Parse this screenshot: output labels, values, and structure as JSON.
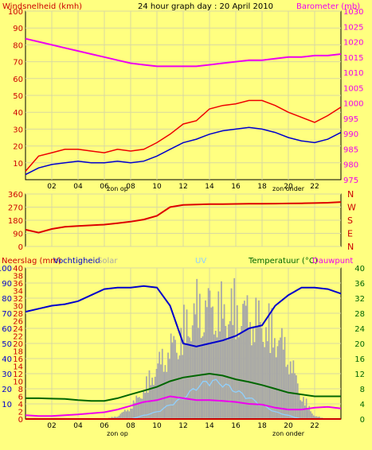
{
  "title": "24 hour graph day : 20 April 2010",
  "colors": {
    "background": "#ffff80",
    "plot_bg": "#ffff80",
    "grid": "#d9d9a0",
    "gust": "#ee0000",
    "speed": "#0000cc",
    "barometer": "#ee00ee",
    "direction": "#dd0000",
    "humidity": "#0000cc",
    "solar": "#a8a8a8",
    "uv": "#8fd0ff",
    "temperature": "#006600",
    "dewpoint": "#ee00ee",
    "rain": "#cc0000"
  },
  "chart_data": [
    {
      "type": "line",
      "panel": "wind-barometer",
      "left_axis_label": "Windsnelheid (kmh)",
      "right_axis_label": "Barometer (mb)",
      "x_ticks": [
        "02",
        "04",
        "06",
        "08",
        "10",
        "12",
        "14",
        "16",
        "18",
        "20",
        "22"
      ],
      "sun_labels": [
        "zon op",
        "zon onder"
      ],
      "y_left_ticks": [
        "10",
        "20",
        "30",
        "40",
        "50",
        "60",
        "70",
        "80",
        "90",
        "100"
      ],
      "y_right_ticks": [
        "975",
        "980",
        "985",
        "990",
        "995",
        "1000",
        "1005",
        "1010",
        "1015",
        "1020",
        "1025",
        "1030"
      ],
      "ylim_left": [
        0,
        100
      ],
      "ylim_right": [
        975,
        1030
      ],
      "x": [
        0,
        1,
        2,
        3,
        4,
        5,
        6,
        7,
        8,
        9,
        10,
        11,
        12,
        13,
        14,
        15,
        16,
        17,
        18,
        19,
        20,
        21,
        22,
        23,
        24
      ],
      "series": [
        {
          "key": "gust",
          "axis": "left",
          "values": [
            5,
            14,
            16,
            18,
            18,
            17,
            16,
            18,
            17,
            18,
            22,
            27,
            33,
            35,
            42,
            44,
            45,
            47,
            47,
            44,
            40,
            37,
            34,
            38,
            43
          ]
        },
        {
          "key": "speed",
          "axis": "left",
          "values": [
            3,
            7,
            9,
            10,
            11,
            10,
            10,
            11,
            10,
            11,
            14,
            18,
            22,
            24,
            27,
            29,
            30,
            31,
            30,
            28,
            25,
            23,
            22,
            24,
            28
          ]
        },
        {
          "key": "barometer",
          "axis": "right",
          "values": [
            1021,
            1020,
            1019,
            1018,
            1017,
            1016,
            1015,
            1014,
            1013,
            1012.5,
            1012,
            1012,
            1012,
            1012,
            1012.5,
            1013,
            1013.5,
            1014,
            1014,
            1014.5,
            1015,
            1015,
            1015.5,
            1015.5,
            1016
          ]
        }
      ]
    },
    {
      "type": "line",
      "panel": "wind-direction",
      "y_left_ticks": [
        "0",
        "90",
        "180",
        "270",
        "360"
      ],
      "right_labels": [
        "N",
        "W",
        "S",
        "E",
        "N"
      ],
      "ylim": [
        0,
        360
      ],
      "x": [
        0,
        1,
        2,
        3,
        4,
        5,
        6,
        7,
        8,
        9,
        10,
        11,
        12,
        13,
        14,
        15,
        16,
        17,
        18,
        19,
        20,
        21,
        22,
        23,
        24
      ],
      "series": [
        {
          "key": "direction",
          "values": [
            115,
            95,
            120,
            135,
            140,
            145,
            150,
            160,
            170,
            185,
            210,
            270,
            285,
            288,
            290,
            290,
            292,
            293,
            293,
            294,
            295,
            296,
            298,
            300,
            305
          ]
        }
      ]
    },
    {
      "type": "line",
      "panel": "rain-humidity-temperature",
      "labels": {
        "rain": "Neerslag (mm)",
        "humidity": "Vochtigheid",
        "solar": "Solar",
        "uv": "UV",
        "temperature": "Temperatuur (°C)",
        "dewpoint": "Dauwpunt"
      },
      "y_left_humidity_ticks": [
        "10",
        "20",
        "30",
        "40",
        "50",
        "60",
        "70",
        "80",
        "90",
        "100"
      ],
      "y_left_rain_ticks": [
        "0",
        "2",
        "4",
        "6",
        "8",
        "10",
        "12",
        "14",
        "16",
        "18",
        "20",
        "22",
        "24",
        "26",
        "28",
        "30",
        "32",
        "34",
        "36",
        "38",
        "40"
      ],
      "y_right_ticks": [
        "0",
        "4",
        "8",
        "12",
        "16",
        "20",
        "24",
        "28",
        "32",
        "36",
        "40"
      ],
      "ylim_humidity": [
        0,
        100
      ],
      "ylim_temperature": [
        0,
        40
      ],
      "x": [
        0,
        1,
        2,
        3,
        4,
        5,
        6,
        7,
        8,
        9,
        10,
        11,
        12,
        13,
        14,
        15,
        16,
        17,
        18,
        19,
        20,
        21,
        22,
        23,
        24
      ],
      "series": [
        {
          "key": "humidity",
          "axis": "humidity",
          "values": [
            71,
            73,
            75,
            76,
            78,
            82,
            86,
            87,
            87,
            88,
            87,
            75,
            50,
            48,
            50,
            52,
            55,
            60,
            62,
            75,
            82,
            87,
            87,
            86,
            83
          ]
        },
        {
          "key": "solar",
          "axis": "temperature",
          "values": [
            0,
            0,
            0,
            0,
            0,
            0,
            0,
            1,
            4,
            10,
            18,
            24,
            30,
            38,
            39,
            37,
            38,
            36,
            33,
            30,
            22,
            8,
            1,
            0,
            0
          ]
        },
        {
          "key": "uv",
          "axis": "temperature",
          "values": [
            0,
            0,
            0,
            0,
            0,
            0,
            0,
            0,
            0,
            1,
            2,
            4,
            6,
            9,
            11,
            10,
            8,
            6,
            4,
            2,
            1,
            0,
            0,
            0,
            0
          ]
        },
        {
          "key": "temperature",
          "axis": "temperature",
          "values": [
            5.5,
            5.5,
            5.4,
            5.3,
            5.0,
            4.8,
            4.8,
            5.5,
            6.5,
            7.5,
            8.5,
            10.0,
            11.0,
            11.5,
            12.0,
            11.5,
            10.5,
            9.8,
            9.0,
            8.0,
            7.0,
            6.5,
            6.0,
            6.0,
            6.0
          ]
        },
        {
          "key": "dewpoint",
          "axis": "temperature",
          "values": [
            1.0,
            0.8,
            0.8,
            1.0,
            1.2,
            1.5,
            1.8,
            2.5,
            3.5,
            4.5,
            5.0,
            6.0,
            5.5,
            5.0,
            5.0,
            4.8,
            4.5,
            4.0,
            3.8,
            3.0,
            2.5,
            2.5,
            3.0,
            3.2,
            2.8
          ]
        },
        {
          "key": "rain",
          "axis": "temperature",
          "values": [
            0,
            0,
            0,
            0,
            0,
            0,
            0,
            0,
            0,
            0,
            0,
            0,
            0,
            0,
            0,
            0,
            0,
            0,
            0,
            0,
            0,
            0,
            0,
            0,
            0
          ]
        }
      ],
      "x_ticks": [
        "02",
        "04",
        "06",
        "08",
        "10",
        "12",
        "14",
        "16",
        "18",
        "20",
        "22"
      ],
      "sun_labels": [
        "zon op",
        "zon onder"
      ]
    }
  ]
}
